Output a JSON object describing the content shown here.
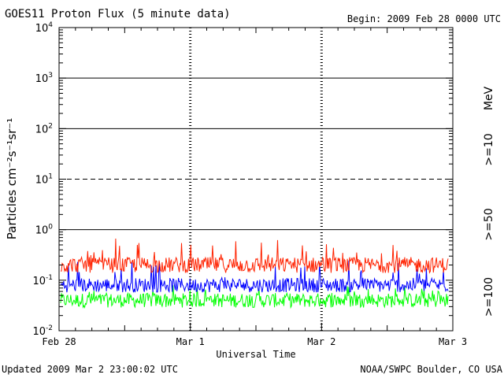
{
  "chart_data": {
    "type": "line",
    "title": "GOES11 Proton Flux (5 minute data)",
    "begin_label": "Begin: 2009 Feb 28 0000 UTC",
    "xlabel": "Universal Time",
    "ylabel": "Particles cm⁻²s⁻¹sr⁻¹",
    "y_scale": "log",
    "ylim": [
      0.01,
      10000
    ],
    "y_ticks": [
      {
        "base": "10",
        "exp": "-2",
        "value": 0.01
      },
      {
        "base": "10",
        "exp": "-1",
        "value": 0.1
      },
      {
        "base": "10",
        "exp": "0",
        "value": 1
      },
      {
        "base": "10",
        "exp": "1",
        "value": 10
      },
      {
        "base": "10",
        "exp": "2",
        "value": 100
      },
      {
        "base": "10",
        "exp": "3",
        "value": 1000
      },
      {
        "base": "10",
        "exp": "4",
        "value": 10000
      }
    ],
    "x_ticks": [
      "Feb 28",
      "Mar 1",
      "Mar 2",
      "Mar 3"
    ],
    "xlim": [
      "2009-02-28 00:00",
      "2009-03-03 00:00"
    ],
    "threshold_lines": [
      {
        "value": 1,
        "style": "solid"
      },
      {
        "value": 10,
        "style": "dashed"
      },
      {
        "value": 100,
        "style": "solid"
      },
      {
        "value": 1000,
        "style": "solid"
      }
    ],
    "energy_unit": "MeV",
    "series": [
      {
        "name": ">=10",
        "color": "#ff2200",
        "typical": 0.2,
        "range": [
          0.12,
          0.7
        ]
      },
      {
        "name": ">=50",
        "color": "#0000ff",
        "typical": 0.08,
        "range": [
          0.05,
          0.25
        ]
      },
      {
        "name": ">=100",
        "color": "#00ff00",
        "typical": 0.04,
        "range": [
          0.025,
          0.08
        ]
      }
    ]
  },
  "footer": {
    "updated": "Updated 2009 Mar  2 23:00:02 UTC",
    "credit": "NOAA/SWPC Boulder, CO USA"
  }
}
